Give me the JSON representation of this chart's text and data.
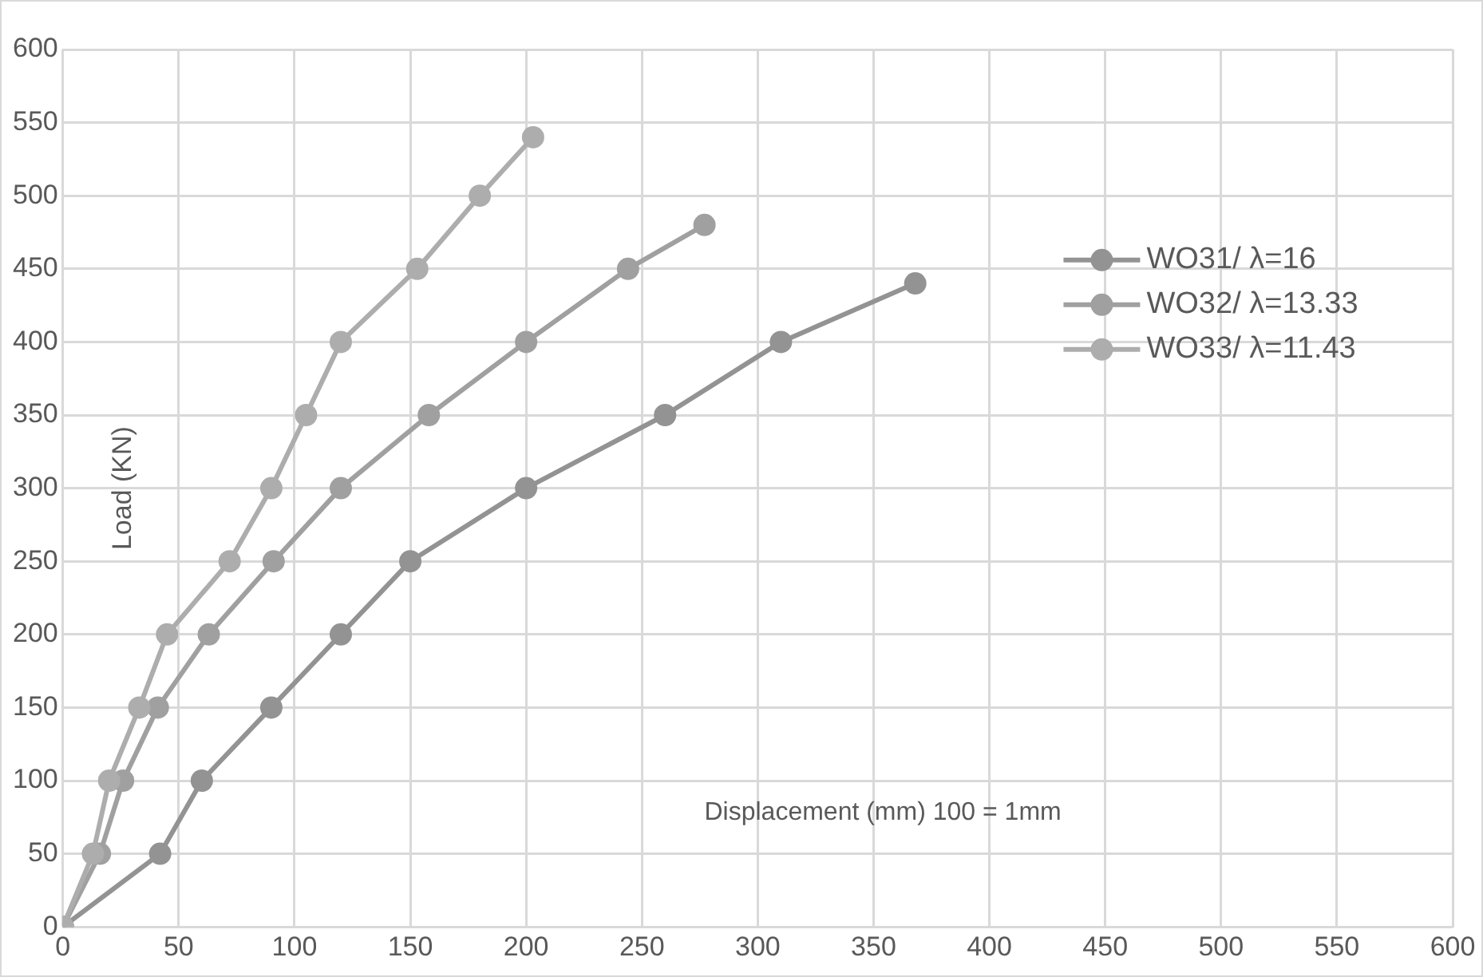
{
  "chart_data": {
    "type": "line",
    "xlabel": "Displacement (mm) 100 = 1mm",
    "ylabel": "Load (KN)",
    "xlim": [
      0,
      600
    ],
    "xticks": [
      0,
      50,
      100,
      150,
      200,
      250,
      300,
      350,
      400,
      450,
      500,
      550,
      600
    ],
    "ylim": [
      0,
      600
    ],
    "yticks": [
      0,
      50,
      100,
      150,
      200,
      250,
      300,
      350,
      400,
      450,
      500,
      550,
      600
    ],
    "grid": true,
    "legend": "right",
    "marker": "circle",
    "line_style": "solid",
    "series": [
      {
        "name": "WO31/ λ=16",
        "color": "#939393",
        "x": [
          0,
          42,
          60,
          90,
          120,
          150,
          200,
          260,
          310,
          368
        ],
        "values": [
          0,
          50,
          100,
          150,
          200,
          250,
          300,
          350,
          400,
          440
        ]
      },
      {
        "name": "WO32/ λ=13.33",
        "color": "#a0a0a0",
        "x": [
          0,
          16,
          26,
          41,
          63,
          91,
          120,
          158,
          200,
          244,
          277
        ],
        "values": [
          0,
          50,
          100,
          150,
          200,
          250,
          300,
          350,
          400,
          450,
          480
        ]
      },
      {
        "name": "WO33/ λ=11.43",
        "color": "#adadad",
        "x": [
          0,
          13,
          20,
          33,
          45,
          72,
          90,
          105,
          120,
          153,
          180,
          203
        ],
        "values": [
          0,
          50,
          100,
          150,
          200,
          250,
          300,
          350,
          400,
          450,
          500,
          540
        ]
      }
    ]
  }
}
